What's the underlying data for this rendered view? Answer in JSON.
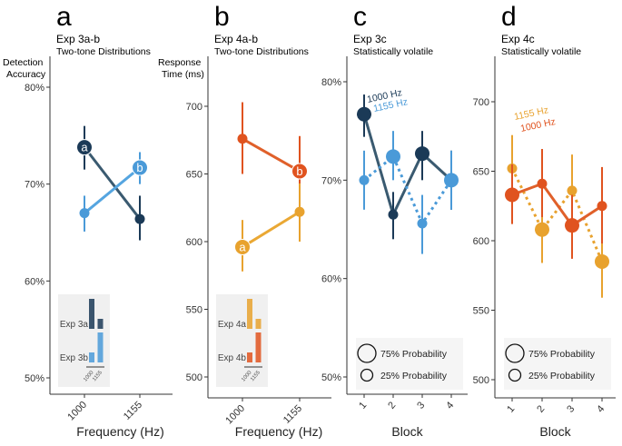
{
  "chart_data": [
    {
      "panel": "a",
      "title": "Exp 3a-b",
      "subtitle": "Two-tone Distributions",
      "type": "line",
      "ylabel": "Detection Accuracy",
      "xlabel": "Frequency (Hz)",
      "yticks": [
        "50%",
        "60%",
        "70%",
        "80%"
      ],
      "ylim": [
        50,
        80
      ],
      "categories": [
        "1000",
        "1155"
      ],
      "series": [
        {
          "label": "a",
          "color": "#1b3a57",
          "line_color": "#3a5a70",
          "values": [
            73.8,
            66.4
          ],
          "err_low": [
            71.5,
            64.2
          ],
          "err_high": [
            76.0,
            68.8
          ],
          "point_label_index": 0
        },
        {
          "label": "b",
          "color": "#4a9ad8",
          "line_color": "#55a5e0",
          "values": [
            67.0,
            71.7
          ],
          "err_low": [
            65.1,
            70.0
          ],
          "err_high": [
            68.8,
            73.3
          ],
          "point_label_index": 1
        }
      ],
      "inset": {
        "rows": [
          {
            "label": "Exp 3a",
            "color": "#1b3a57",
            "values": [
              0.75,
              0.25
            ]
          },
          {
            "label": "Exp 3b",
            "color": "#4a9ad8",
            "values": [
              0.25,
              0.75
            ]
          }
        ],
        "ticks": [
          "1000",
          "1155"
        ]
      }
    },
    {
      "panel": "b",
      "title": "Exp 4a-b",
      "subtitle": "Two-tone Distributions",
      "type": "line",
      "ylabel": "Response Time (ms)",
      "xlabel": "Frequency (Hz)",
      "yticks": [
        "500",
        "550",
        "600",
        "650",
        "700"
      ],
      "ylim": [
        500,
        700
      ],
      "categories": [
        "1000",
        "1155"
      ],
      "series": [
        {
          "label": "b",
          "color": "#e0531f",
          "line_color": "#e0602a",
          "values": [
            676,
            652
          ],
          "err_low": [
            650,
            620
          ],
          "err_high": [
            703,
            678
          ],
          "point_label_index": 1
        },
        {
          "label": "a",
          "color": "#e8a22e",
          "line_color": "#eaa834",
          "values": [
            596,
            622
          ],
          "err_low": [
            578,
            600
          ],
          "err_high": [
            616,
            643
          ],
          "point_label_index": 0
        }
      ],
      "inset": {
        "rows": [
          {
            "label": "Exp 4a",
            "color": "#e8a22e",
            "values": [
              0.75,
              0.25
            ]
          },
          {
            "label": "Exp 4b",
            "color": "#e0531f",
            "values": [
              0.25,
              0.75
            ]
          }
        ],
        "ticks": [
          "1000",
          "1155"
        ]
      }
    },
    {
      "panel": "c",
      "title": "Exp 3c",
      "subtitle": "Statistically volatile",
      "type": "line",
      "xlabel": "Block",
      "yticks": [
        "50%",
        "60%",
        "70%",
        "80%"
      ],
      "ylim": [
        50,
        80
      ],
      "categories": [
        "1",
        "2",
        "3",
        "4"
      ],
      "series": [
        {
          "name": "1000 Hz",
          "color": "#1b3a57",
          "line_color": "#3a5a70",
          "dash": false,
          "values": [
            76.7,
            66.5,
            72.7,
            70.0
          ],
          "err_low": [
            74.4,
            64.0,
            70.0,
            67.0
          ],
          "err_high": [
            78.7,
            68.8,
            75.0,
            73.0
          ],
          "probability": [
            75,
            25,
            75,
            25
          ]
        },
        {
          "name": "1155 Hz",
          "color": "#4a9ad8",
          "line_color": "#4a9ad8",
          "dash": true,
          "values": [
            70.0,
            72.4,
            65.6,
            70.0
          ],
          "err_low": [
            67.0,
            70.0,
            62.5,
            67.0
          ],
          "err_high": [
            73.0,
            75.0,
            68.5,
            73.0
          ],
          "probability": [
            25,
            75,
            25,
            75
          ]
        }
      ],
      "legend": [
        "75% Probability",
        "25% Probability"
      ]
    },
    {
      "panel": "d",
      "title": "Exp 4c",
      "subtitle": "Statistically volatile",
      "type": "line",
      "xlabel": "Block",
      "yticks": [
        "500",
        "550",
        "600",
        "650",
        "700"
      ],
      "ylim": [
        500,
        700
      ],
      "categories": [
        "1",
        "2",
        "3",
        "4"
      ],
      "series": [
        {
          "name": "1155 Hz",
          "color": "#e8a22e",
          "line_color": "#e8a22e",
          "dash": true,
          "values": [
            652,
            608,
            636,
            585
          ],
          "err_low": [
            626,
            584,
            612,
            559
          ],
          "err_high": [
            676,
            632,
            662,
            610
          ],
          "probability": [
            25,
            75,
            25,
            75
          ]
        },
        {
          "name": "1000 Hz",
          "color": "#e0531f",
          "line_color": "#e0602a",
          "dash": false,
          "values": [
            633,
            641,
            611,
            625
          ],
          "err_low": [
            612,
            617,
            587,
            598
          ],
          "err_high": [
            655,
            666,
            633,
            653
          ],
          "probability": [
            75,
            25,
            75,
            25
          ]
        }
      ],
      "legend": [
        "75% Probability",
        "25% Probability"
      ]
    }
  ]
}
